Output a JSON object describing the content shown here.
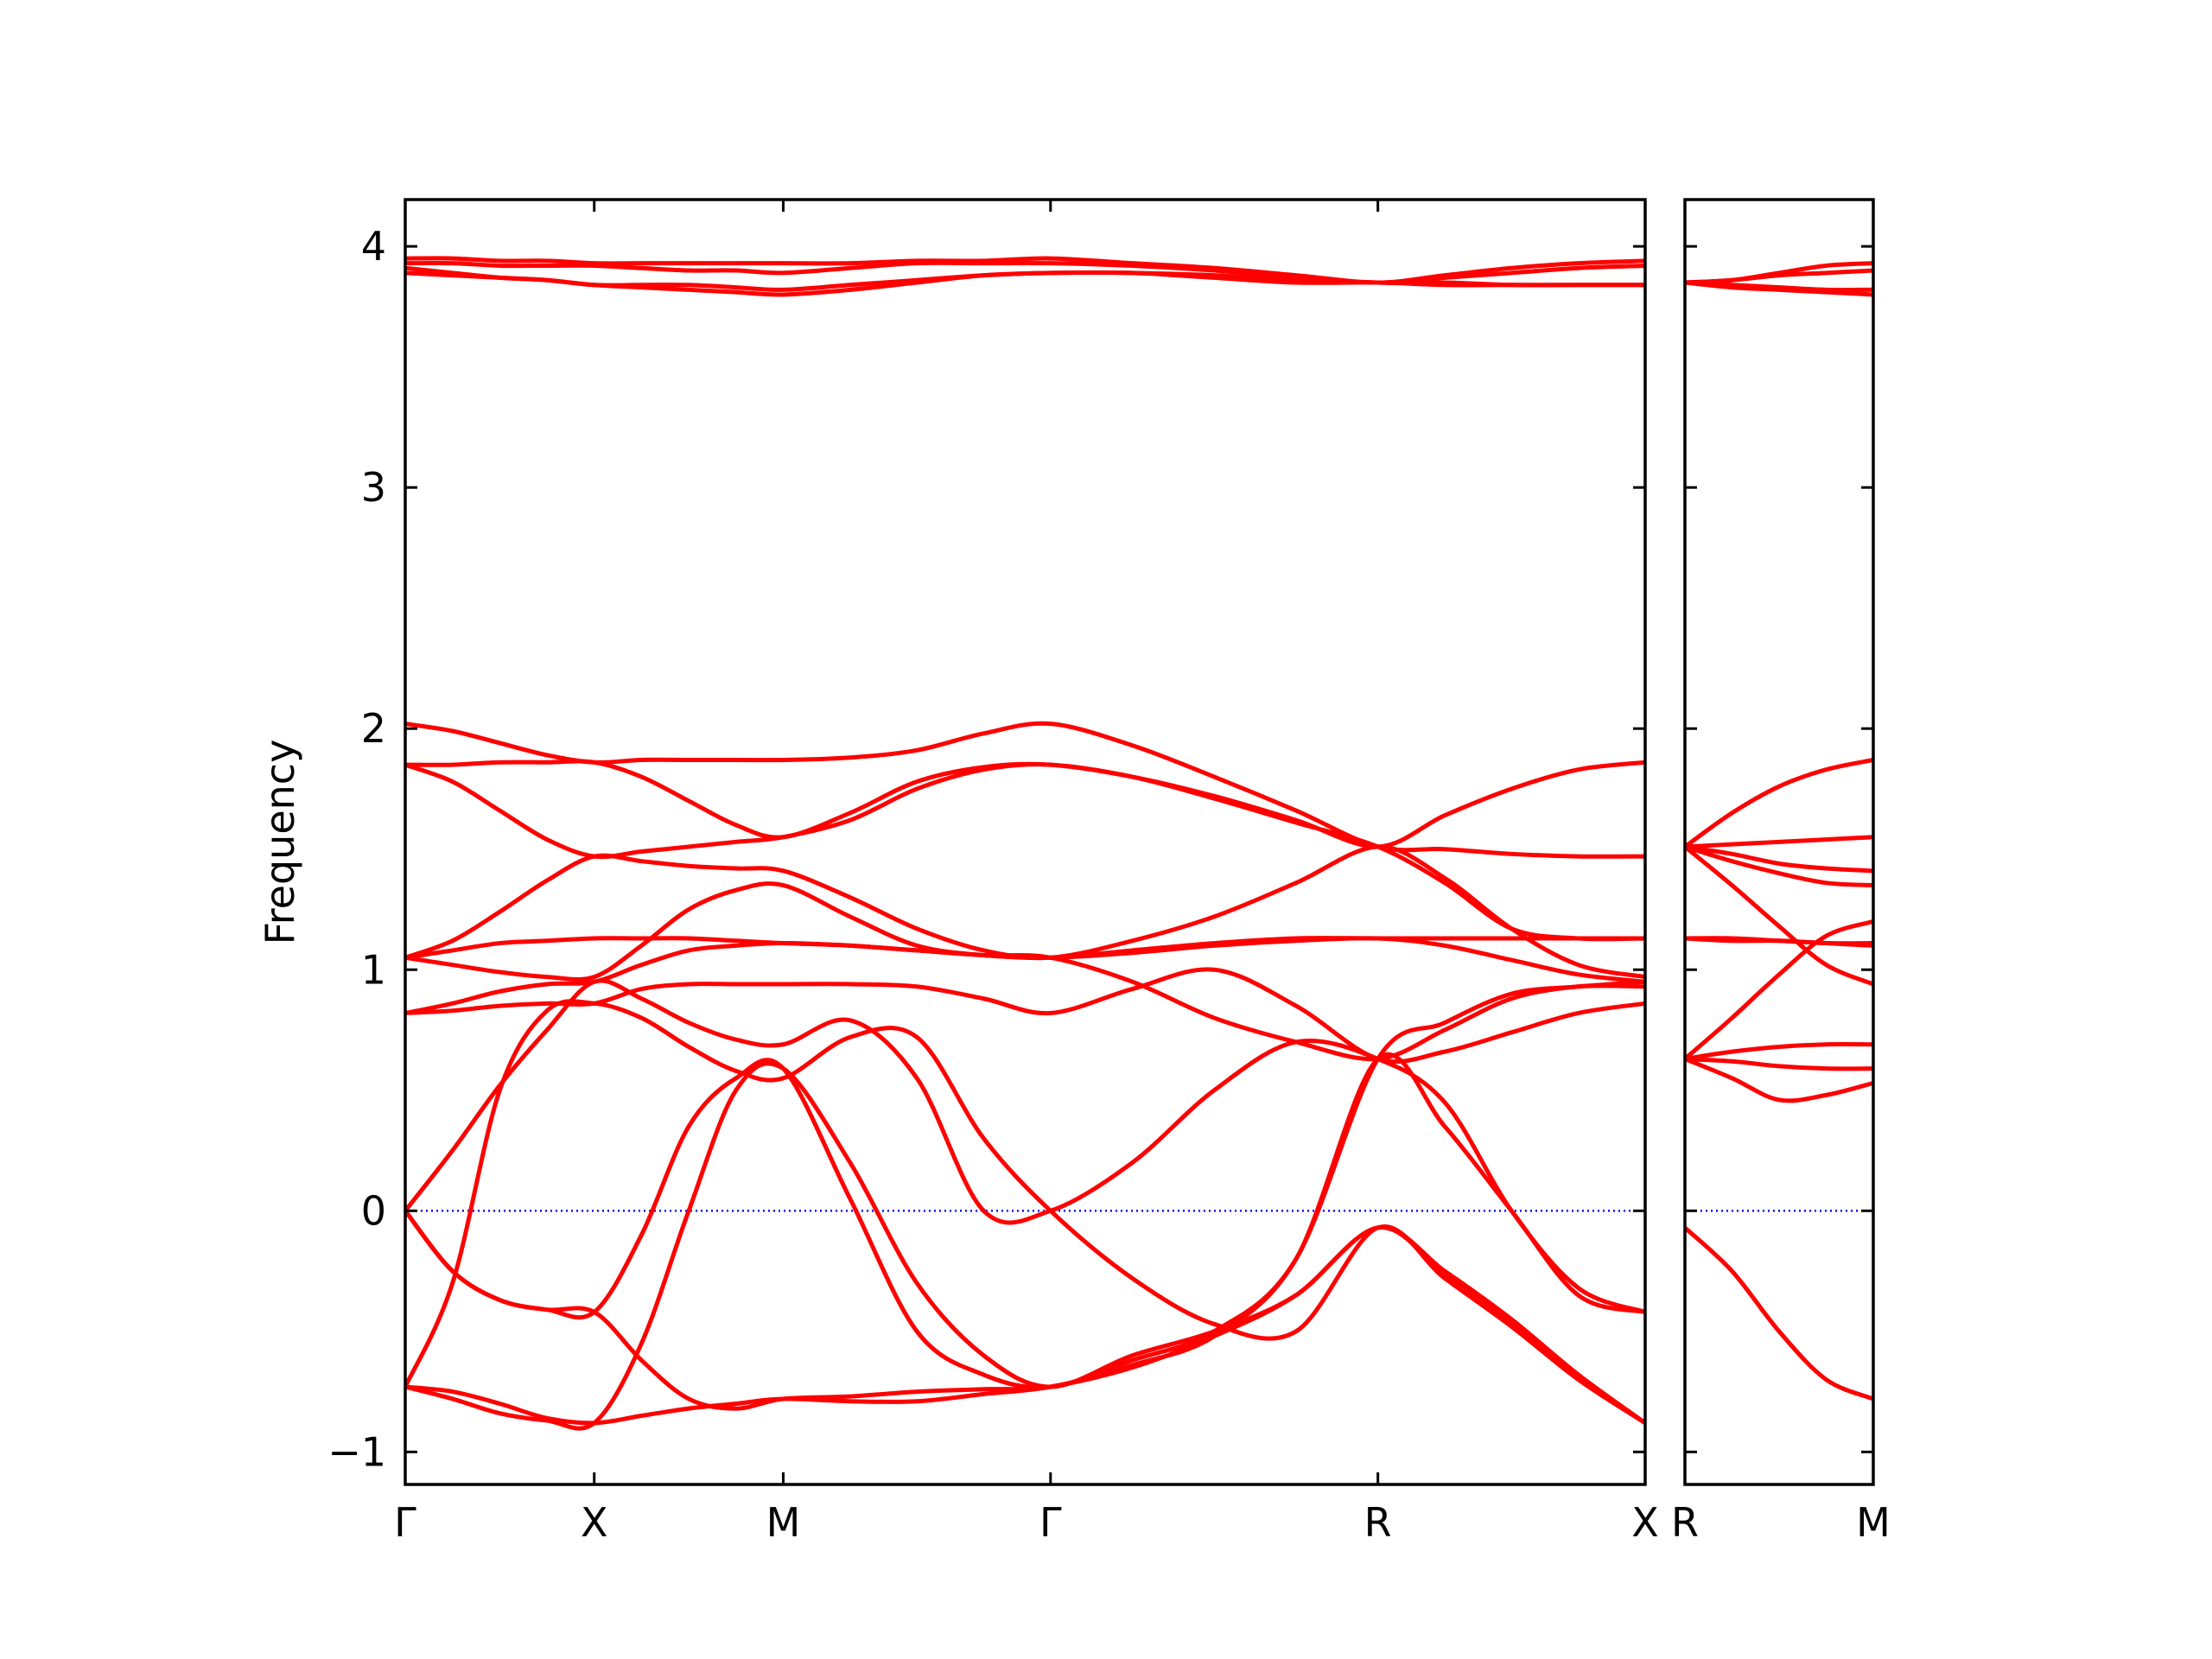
{
  "chart_data": [
    {
      "type": "line",
      "ylabel": "Frequency",
      "color": "#ff0000",
      "hline": 0,
      "hline_color": "#0000ff",
      "xlim": [
        0,
        3.2802
      ],
      "ylim": [
        -1.135,
        4.194
      ],
      "xticks": [
        {
          "value": 0,
          "label": "Γ"
        },
        {
          "value": 0.5,
          "label": "X"
        },
        {
          "value": 1.0,
          "label": "M"
        },
        {
          "value": 1.7071,
          "label": "Γ"
        },
        {
          "value": 2.5731,
          "label": "R"
        },
        {
          "value": 3.2802,
          "label": "X"
        }
      ],
      "yticks": [
        {
          "value": -1,
          "label": "−1"
        },
        0,
        1,
        2,
        3,
        4
      ],
      "x": [
        0,
        0.125,
        0.25,
        0.375,
        0.5,
        0.625,
        0.75,
        0.875,
        1.0,
        1.1768,
        1.3536,
        1.5303,
        1.7071,
        1.9236,
        2.1401,
        2.3566,
        2.5731,
        2.7499,
        2.9266,
        3.1034,
        3.2802
      ],
      "series": [
        {
          "values": [
            3.95,
            3.95,
            3.94,
            3.94,
            3.93,
            3.93,
            3.93,
            3.93,
            3.93,
            3.93,
            3.94,
            3.94,
            3.95,
            3.93,
            3.91,
            3.88,
            3.85,
            3.88,
            3.91,
            3.93,
            3.94
          ]
        },
        {
          "values": [
            3.93,
            3.93,
            3.92,
            3.92,
            3.92,
            3.91,
            3.9,
            3.9,
            3.89,
            3.91,
            3.93,
            3.93,
            3.93,
            3.92,
            3.9,
            3.87,
            3.85,
            3.87,
            3.89,
            3.91,
            3.92
          ]
        },
        {
          "values": [
            3.91,
            3.89,
            3.87,
            3.86,
            3.84,
            3.83,
            3.82,
            3.81,
            3.8,
            3.82,
            3.85,
            3.88,
            3.89,
            3.89,
            3.88,
            3.86,
            3.85,
            3.85,
            3.84,
            3.84,
            3.84
          ]
        },
        {
          "values": [
            3.89,
            3.88,
            3.87,
            3.86,
            3.84,
            3.84,
            3.84,
            3.83,
            3.82,
            3.84,
            3.86,
            3.88,
            3.89,
            3.89,
            3.87,
            3.85,
            3.85,
            3.84,
            3.84,
            3.84,
            3.84
          ]
        },
        {
          "values": [
            2.02,
            1.99,
            1.94,
            1.89,
            1.86,
            1.87,
            1.87,
            1.87,
            1.87,
            1.88,
            1.91,
            1.98,
            2.02,
            1.93,
            1.8,
            1.66,
            1.51,
            1.5,
            1.48,
            1.47,
            1.47
          ]
        },
        {
          "values": [
            1.85,
            1.85,
            1.86,
            1.86,
            1.86,
            1.8,
            1.7,
            1.6,
            1.55,
            1.65,
            1.78,
            1.84,
            1.85,
            1.8,
            1.72,
            1.62,
            1.51,
            1.64,
            1.75,
            1.83,
            1.86
          ]
        },
        {
          "values": [
            1.85,
            1.78,
            1.66,
            1.54,
            1.47,
            1.49,
            1.51,
            1.53,
            1.55,
            1.62,
            1.75,
            1.83,
            1.85,
            1.8,
            1.71,
            1.61,
            1.51,
            1.36,
            1.17,
            1.13,
            1.13
          ]
        },
        {
          "values": [
            1.05,
            1.12,
            1.24,
            1.37,
            1.47,
            1.45,
            1.43,
            1.42,
            1.41,
            1.3,
            1.17,
            1.08,
            1.05,
            1.12,
            1.22,
            1.36,
            1.51,
            1.38,
            1.17,
            1.02,
            0.97
          ]
        },
        {
          "values": [
            1.05,
            1.08,
            1.11,
            1.12,
            1.13,
            1.13,
            1.13,
            1.12,
            1.11,
            1.1,
            1.08,
            1.06,
            1.05,
            1.08,
            1.11,
            1.13,
            1.13,
            1.13,
            1.13,
            1.13,
            1.13
          ]
        },
        {
          "values": [
            1.05,
            1.02,
            0.99,
            0.97,
            0.97,
            1.1,
            1.25,
            1.33,
            1.35,
            1.22,
            1.1,
            1.06,
            1.05,
            1.07,
            1.1,
            1.12,
            1.13,
            1.1,
            1.04,
            0.98,
            0.95
          ]
        },
        {
          "values": [
            0.82,
            0.86,
            0.91,
            0.94,
            0.95,
            1.02,
            1.08,
            1.1,
            1.11,
            1.1,
            1.08,
            1.06,
            1.05,
            0.95,
            0.8,
            0.7,
            0.63,
            0.75,
            0.88,
            0.93,
            0.93
          ]
        },
        {
          "values": [
            0.82,
            0.83,
            0.85,
            0.86,
            0.86,
            0.92,
            0.94,
            0.94,
            0.94,
            0.94,
            0.93,
            0.88,
            0.82,
            0.92,
            1.0,
            0.85,
            0.63,
            0.66,
            0.74,
            0.82,
            0.86
          ]
        },
        {
          "values": [
            0,
            0.25,
            0.52,
            0.75,
            0.95,
            0.88,
            0.78,
            0.71,
            0.69,
            0.79,
            0.55,
            0,
            0,
            0.2,
            0.5,
            0.7,
            0.63,
            0.45,
            0,
            -0.32,
            -0.42
          ]
        },
        {
          "values": [
            0,
            -0.25,
            -0.37,
            -0.41,
            -0.42,
            -0.1,
            0.35,
            0.55,
            0.59,
            0.05,
            -0.5,
            -0.68,
            -0.73,
            -0.62,
            -0.5,
            -0.2,
            0.63,
            0.78,
            0.9,
            0.93,
            0.95
          ]
        },
        {
          "values": [
            -0.73,
            -0.75,
            -0.8,
            -0.86,
            -0.88,
            -0.85,
            -0.82,
            -0.8,
            -0.78,
            -0.79,
            -0.79,
            -0.76,
            -0.73,
            -0.65,
            -0.52,
            -0.35,
            -0.07,
            -0.25,
            -0.45,
            -0.68,
            -0.88
          ]
        },
        {
          "values": [
            -0.73,
            -0.3,
            0.5,
            0.83,
            0.86,
            0.8,
            0.68,
            0.58,
            0.55,
            0.72,
            0.72,
            0.3,
            0,
            -0.28,
            -0.47,
            -0.5,
            -0.07,
            -0.28,
            -0.48,
            -0.7,
            -0.88
          ]
        },
        {
          "values": [
            0,
            -0.25,
            -0.37,
            -0.41,
            -0.42,
            -0.62,
            -0.78,
            -0.82,
            -0.78,
            -0.77,
            -0.75,
            -0.74,
            -0.73,
            -0.64,
            -0.52,
            -0.2,
            0.63,
            0.35,
            0,
            -0.35,
            -0.42
          ]
        },
        {
          "values": [
            -0.73,
            -0.78,
            -0.84,
            -0.87,
            -0.88,
            -0.55,
            0,
            0.5,
            0.59,
            0.2,
            -0.3,
            -0.6,
            -0.73,
            -0.6,
            -0.5,
            -0.35,
            -0.07,
            -0.26,
            -0.46,
            -0.69,
            -0.88
          ]
        }
      ]
    },
    {
      "type": "line",
      "color": "#ff0000",
      "hline": 0,
      "hline_color": "#0000ff",
      "xlim": [
        0,
        0.5
      ],
      "ylim": [
        -1.135,
        4.194
      ],
      "xticks": [
        {
          "value": 0,
          "label": "R"
        },
        {
          "value": 0.5,
          "label": "M"
        }
      ],
      "yticks": [
        -1,
        0,
        1,
        2,
        3,
        4
      ],
      "x": [
        0,
        0.125,
        0.25,
        0.375,
        0.5
      ],
      "series": [
        {
          "values": [
            3.85,
            3.86,
            3.89,
            3.92,
            3.93
          ]
        },
        {
          "values": [
            3.85,
            3.86,
            3.88,
            3.89,
            3.9
          ]
        },
        {
          "values": [
            3.85,
            3.84,
            3.83,
            3.82,
            3.82
          ]
        },
        {
          "values": [
            3.85,
            3.83,
            3.82,
            3.81,
            3.8
          ]
        },
        {
          "values": [
            1.51,
            1.65,
            1.76,
            1.83,
            1.87
          ]
        },
        {
          "values": [
            1.51,
            1.52,
            1.53,
            1.54,
            1.55
          ]
        },
        {
          "values": [
            1.51,
            1.48,
            1.44,
            1.42,
            1.41
          ]
        },
        {
          "values": [
            1.51,
            1.45,
            1.4,
            1.36,
            1.35
          ]
        },
        {
          "values": [
            1.13,
            1.12,
            1.12,
            1.11,
            1.11
          ]
        },
        {
          "values": [
            1.13,
            1.13,
            1.12,
            1.11,
            1.1
          ]
        },
        {
          "values": [
            1.51,
            1.35,
            1.18,
            1.02,
            0.94
          ]
        },
        {
          "values": [
            0.63,
            0.8,
            0.98,
            1.14,
            1.2
          ]
        },
        {
          "values": [
            0.63,
            0.66,
            0.68,
            0.69,
            0.69
          ]
        },
        {
          "values": [
            0.63,
            0.62,
            0.6,
            0.59,
            0.59
          ]
        },
        {
          "values": [
            0.63,
            0.55,
            0.46,
            0.48,
            0.53
          ]
        },
        {
          "values": [
            -0.07,
            -0.25,
            -0.5,
            -0.7,
            -0.78
          ]
        }
      ]
    }
  ]
}
